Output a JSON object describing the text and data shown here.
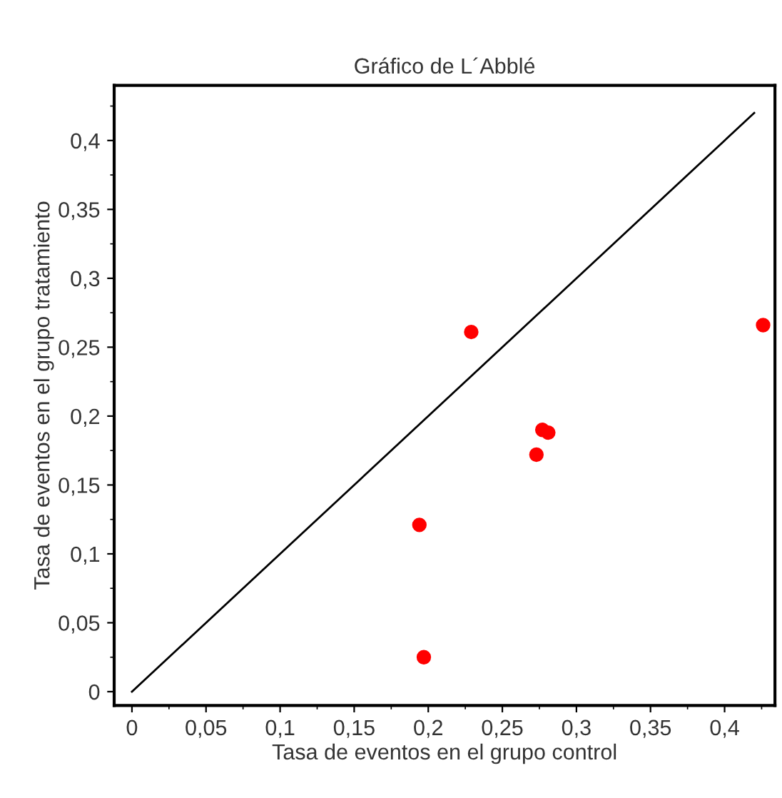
{
  "chart_data": {
    "type": "scatter",
    "title": "Gráfico de L´Abblé",
    "xlabel": "Tasa de eventos en el grupo control",
    "ylabel": "Tasa de eventos en el grupo tratamiento",
    "series": [
      {
        "color": "#ff0000",
        "marker": "circle",
        "x": [
          0.229,
          0.426,
          0.277,
          0.281,
          0.273,
          0.194,
          0.197
        ],
        "values": [
          0.261,
          0.266,
          0.19,
          0.188,
          0.172,
          0.121,
          0.025
        ]
      },
      {
        "type": "line",
        "color": "#000000",
        "marker": "none",
        "line_style": "solid",
        "x": [
          0,
          0.42
        ],
        "values": [
          0,
          0.42
        ]
      }
    ],
    "xlim": [
      -0.012,
      0.434
    ],
    "ylim": [
      -0.01,
      0.44
    ],
    "xticks": [
      {
        "value": 0,
        "label": "0"
      },
      {
        "value": 0.05,
        "label": "0,05"
      },
      {
        "value": 0.1,
        "label": "0,1"
      },
      {
        "value": 0.15,
        "label": "0,15"
      },
      {
        "value": 0.2,
        "label": "0,2"
      },
      {
        "value": 0.25,
        "label": "0,25"
      },
      {
        "value": 0.3,
        "label": "0,3"
      },
      {
        "value": 0.35,
        "label": "0,35"
      },
      {
        "value": 0.4,
        "label": "0,4"
      }
    ],
    "yticks": [
      {
        "value": 0,
        "label": "0"
      },
      {
        "value": 0.05,
        "label": "0,05"
      },
      {
        "value": 0.1,
        "label": "0,1"
      },
      {
        "value": 0.15,
        "label": "0,15"
      },
      {
        "value": 0.2,
        "label": "0,2"
      },
      {
        "value": 0.25,
        "label": "0,25"
      },
      {
        "value": 0.3,
        "label": "0,3"
      },
      {
        "value": 0.35,
        "label": "0,35"
      },
      {
        "value": 0.4,
        "label": "0,4"
      }
    ],
    "grid": false,
    "legend": false
  }
}
